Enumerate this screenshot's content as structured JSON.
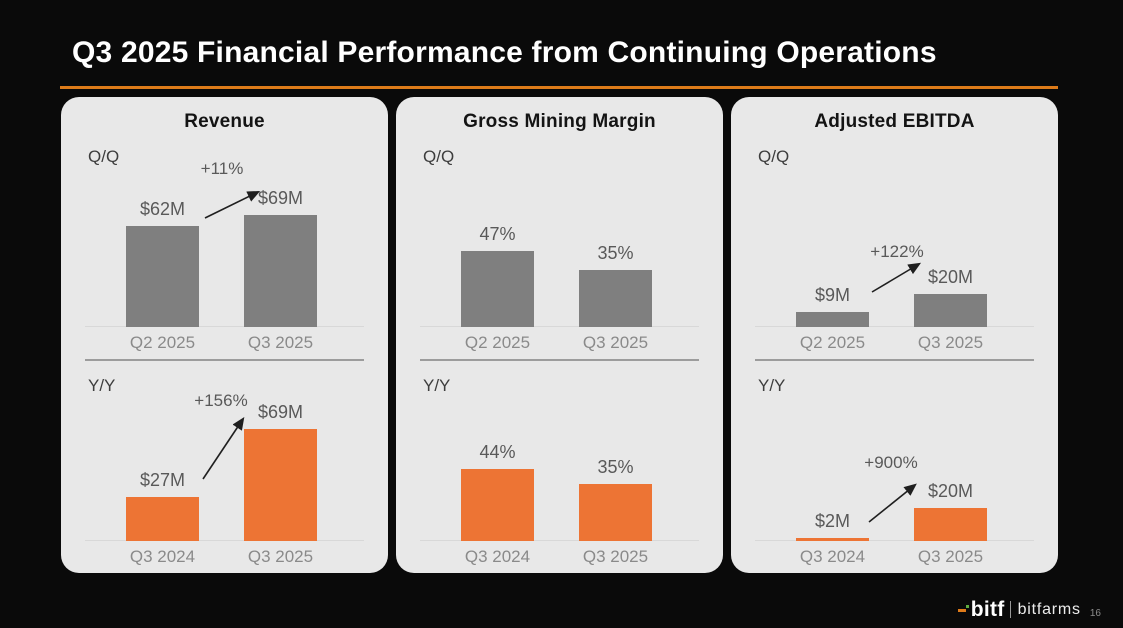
{
  "header": {
    "title": "Q3 2025 Financial Performance from Continuing Operations"
  },
  "panels": [
    {
      "title": "Revenue"
    },
    {
      "title": "Gross Mining Margin"
    },
    {
      "title": "Adjusted EBITDA"
    }
  ],
  "chart_data": [
    {
      "panel": "Revenue",
      "comparison": "Q/Q",
      "type": "bar",
      "categories": [
        "Q2 2025",
        "Q3 2025"
      ],
      "values": [
        62,
        69
      ],
      "value_labels": [
        "$62M",
        "$69M"
      ],
      "delta_label": "+11%",
      "bar_color": "#7f7f7f",
      "ylim": [
        0,
        80
      ],
      "grid": false
    },
    {
      "panel": "Revenue",
      "comparison": "Y/Y",
      "type": "bar",
      "categories": [
        "Q3 2024",
        "Q3 2025"
      ],
      "values": [
        27,
        69
      ],
      "value_labels": [
        "$27M",
        "$69M"
      ],
      "delta_label": "+156%",
      "bar_color": "#ed7434",
      "ylim": [
        0,
        80
      ],
      "grid": false
    },
    {
      "panel": "Gross Mining Margin",
      "comparison": "Q/Q",
      "type": "bar",
      "categories": [
        "Q2 2025",
        "Q3 2025"
      ],
      "values": [
        47,
        35
      ],
      "value_labels": [
        "47%",
        "35%"
      ],
      "delta_label": null,
      "bar_color": "#7f7f7f",
      "ylim": [
        0,
        80
      ],
      "grid": false
    },
    {
      "panel": "Gross Mining Margin",
      "comparison": "Y/Y",
      "type": "bar",
      "categories": [
        "Q3 2024",
        "Q3 2025"
      ],
      "values": [
        44,
        35
      ],
      "value_labels": [
        "44%",
        "35%"
      ],
      "delta_label": null,
      "bar_color": "#ed7434",
      "ylim": [
        0,
        80
      ],
      "grid": false
    },
    {
      "panel": "Adjusted EBITDA",
      "comparison": "Q/Q",
      "type": "bar",
      "categories": [
        "Q2 2025",
        "Q3 2025"
      ],
      "values": [
        9,
        20
      ],
      "value_labels": [
        "$9M",
        "$20M"
      ],
      "delta_label": "+122%",
      "bar_color": "#7f7f7f",
      "ylim": [
        0,
        80
      ],
      "grid": false
    },
    {
      "panel": "Adjusted EBITDA",
      "comparison": "Y/Y",
      "type": "bar",
      "categories": [
        "Q3 2024",
        "Q3 2025"
      ],
      "values": [
        2,
        20
      ],
      "value_labels": [
        "$2M",
        "$20M"
      ],
      "delta_label": "+900%",
      "bar_color": "#ed7434",
      "ylim": [
        0,
        80
      ],
      "grid": false
    }
  ],
  "colors": {
    "background": "#0a0a0a",
    "panel_background": "#e8e8e8",
    "accent_orange": "#dd7b19",
    "bar_gray": "#7f7f7f",
    "bar_orange": "#ed7434"
  },
  "footer": {
    "logo_primary": "bitf",
    "logo_secondary": "bitfarms",
    "page_number": "16"
  }
}
